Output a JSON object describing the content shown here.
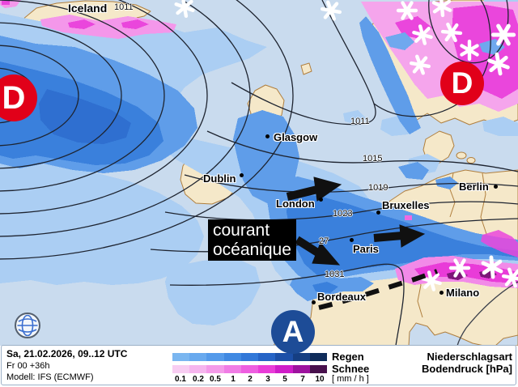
{
  "map": {
    "region_label": "Iceland",
    "annotation_box": {
      "line1": "courant",
      "line2": "océanique"
    },
    "cities": [
      {
        "name": "Glasgow"
      },
      {
        "name": "Dublin"
      },
      {
        "name": "London"
      },
      {
        "name": "Bruxelles"
      },
      {
        "name": "Paris"
      },
      {
        "name": "Berlin"
      },
      {
        "name": "Bordeaux"
      },
      {
        "name": "Milano"
      }
    ],
    "isobar_labels": [
      {
        "value": "1011"
      },
      {
        "value": "1011"
      },
      {
        "value": "1015"
      },
      {
        "value": "1019"
      },
      {
        "value": "1023"
      },
      {
        "value": "27"
      },
      {
        "value": "1031"
      }
    ],
    "pressure_centers": [
      {
        "symbol": "D",
        "meaning": "low"
      },
      {
        "symbol": "D",
        "meaning": "low"
      },
      {
        "symbol": "A",
        "meaning": "high"
      }
    ]
  },
  "legend": {
    "valid_time": "Sa, 21.02.2026, 09..12 UTC",
    "run_info": "Fr 00 +36h",
    "model_info": "Modell: IFS (ECMWF)",
    "rain_label": "Regen",
    "snow_label": "Schnee",
    "unit_label": "[ mm / h ]",
    "type_label": "Niederschlagsart",
    "pressure_label": "Bodendruck [hPa]",
    "scale_ticks": [
      "0.1",
      "0.2",
      "0.5",
      "1",
      "2",
      "3",
      "5",
      "7",
      "10"
    ],
    "rain_colors": [
      "#7ab6f0",
      "#68a9ee",
      "#549aea",
      "#4089e2",
      "#3278d8",
      "#2664c6",
      "#1c50a8",
      "#153e82",
      "#0f2c5a"
    ],
    "snow_colors": [
      "#f8cdf2",
      "#f6b5ee",
      "#f49ae9",
      "#f07ce5",
      "#ee5ee0",
      "#e93cd8",
      "#cf1dc8",
      "#9d129e",
      "#48104c"
    ]
  },
  "colors": {
    "sea": "#c9dbee",
    "land": "#f5e8c9",
    "coast_border": "#b07f3e",
    "low_center_red": "#e10019",
    "high_center_blue": "#1d4c97",
    "rain_light": "#abcef3",
    "rain_medium": "#5f9de9",
    "rain_dark": "#3a80dc",
    "snow_pink": "#f599ea",
    "snow_magenta": "#ea46dc",
    "snow_dark_purple": "#7c1678"
  }
}
